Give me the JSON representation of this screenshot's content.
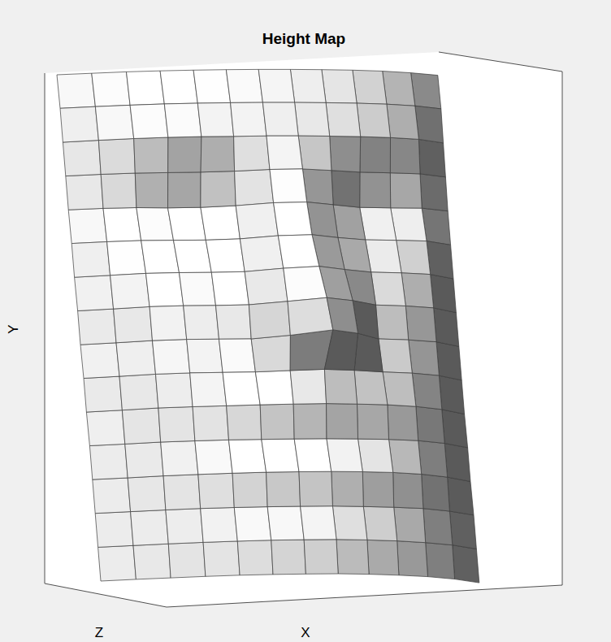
{
  "chart_data": {
    "type": "surface",
    "title": "Height Map",
    "x_label": "X",
    "y_label": "Y",
    "z_label": "Z",
    "x": [
      0,
      1,
      2,
      3,
      4,
      5,
      6,
      7,
      8,
      9,
      10,
      11,
      12
    ],
    "y": [
      15,
      14,
      13,
      12,
      11,
      10,
      9,
      8,
      7,
      6,
      5,
      4,
      3,
      2,
      1,
      0
    ],
    "z": [
      [
        3.0,
        3.6,
        4.2,
        4.6,
        4.9,
        5.1,
        5.2,
        5.2,
        5.1,
        4.9,
        4.5,
        3.8,
        2.8
      ],
      [
        3.0,
        3.7,
        4.3,
        4.8,
        5.1,
        5.3,
        5.4,
        5.4,
        5.3,
        5.1,
        4.7,
        4.0,
        2.8
      ],
      [
        2.9,
        3.7,
        4.4,
        4.9,
        5.2,
        5.3,
        5.5,
        5.5,
        5.4,
        5.2,
        4.8,
        4.1,
        2.6
      ],
      [
        2.8,
        3.5,
        4.0,
        4.2,
        4.4,
        4.8,
        5.5,
        5.7,
        5.1,
        4.4,
        4.1,
        3.7,
        2.4
      ],
      [
        2.7,
        3.3,
        3.6,
        3.5,
        3.7,
        4.4,
        5.6,
        5.9,
        4.8,
        3.7,
        3.5,
        3.4,
        2.2
      ],
      [
        2.7,
        3.4,
        3.9,
        4.0,
        4.1,
        4.6,
        5.9,
        6.3,
        5.1,
        4.2,
        4.0,
        3.7,
        2.1
      ],
      [
        2.6,
        3.4,
        4.2,
        4.5,
        4.6,
        4.9,
        6.3,
        7.1,
        5.8,
        4.7,
        4.4,
        3.8,
        2.0
      ],
      [
        2.6,
        3.4,
        4.3,
        4.7,
        4.8,
        5.1,
        6.5,
        8.0,
        6.8,
        5.0,
        4.6,
        3.8,
        1.9
      ],
      [
        2.5,
        3.3,
        4.2,
        4.7,
        4.8,
        4.9,
        6.4,
        8.6,
        7.2,
        4.9,
        4.5,
        3.7,
        1.8
      ],
      [
        2.5,
        3.3,
        4.2,
        4.7,
        4.9,
        5.1,
        5.7,
        6.2,
        5.8,
        5.1,
        4.6,
        3.6,
        1.7
      ],
      [
        2.4,
        3.2,
        4.1,
        4.6,
        5.0,
        5.4,
        5.7,
        5.9,
        5.7,
        5.4,
        4.7,
        3.5,
        1.6
      ],
      [
        2.4,
        3.1,
        3.9,
        4.4,
        4.8,
        5.0,
        5.2,
        5.3,
        5.2,
        5.0,
        4.5,
        3.4,
        1.6
      ],
      [
        2.3,
        3.0,
        3.8,
        4.4,
        4.9,
        5.3,
        5.5,
        5.6,
        5.5,
        5.2,
        4.5,
        3.3,
        1.5
      ],
      [
        2.2,
        2.9,
        3.6,
        4.2,
        4.6,
        4.9,
        5.1,
        5.2,
        5.0,
        4.7,
        4.2,
        3.1,
        1.5
      ],
      [
        2.1,
        2.8,
        3.5,
        4.1,
        4.6,
        5.0,
        5.2,
        5.3,
        5.1,
        4.7,
        4.0,
        3.0,
        1.4
      ],
      [
        2.0,
        2.7,
        3.3,
        3.9,
        4.4,
        4.7,
        4.9,
        5.0,
        4.8,
        4.4,
        3.8,
        2.8,
        1.3
      ]
    ],
    "xlim": [
      0,
      12
    ],
    "ylim": [
      0,
      15
    ],
    "zlim": [
      0,
      10
    ],
    "tick_labels": false
  }
}
